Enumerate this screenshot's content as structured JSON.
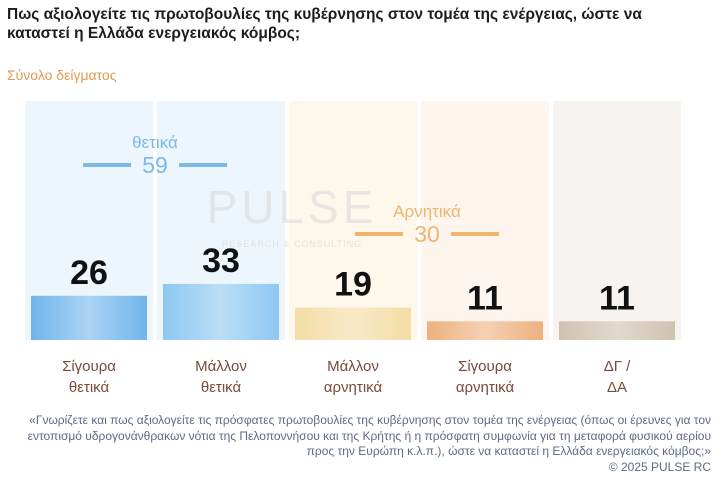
{
  "title": "Πως αξιολογείτε τις πρωτοβουλίες της κυβέρνησης στον τομέα της ενέργειας, ώστε να καταστεί η Ελλάδα ενεργειακός κόμβος;",
  "subtitle": "Σύνολο δείγματος",
  "watermark": {
    "main": "PULSE",
    "sub": "RESEARCH & CONSULTING"
  },
  "chart_data": {
    "type": "bar",
    "categories": [
      "Σίγουρα θετικά",
      "Μάλλον θετικά",
      "Μάλλον αρνητικά",
      "Σίγουρα αρνητικά",
      "ΔΓ / ΔΑ"
    ],
    "category_lines": [
      [
        "Σίγουρα",
        "θετικά"
      ],
      [
        "Μάλλον",
        "θετικά"
      ],
      [
        "Μάλλον",
        "αρνητικά"
      ],
      [
        "Σίγουρα",
        "αρνητικά"
      ],
      [
        "ΔΓ /",
        "ΔΑ"
      ]
    ],
    "values": [
      26,
      33,
      19,
      11,
      11
    ],
    "colors": [
      "#5aa9e8",
      "#7cc0f0",
      "#f2d89a",
      "#eaa56c",
      "#c9b9a4"
    ],
    "column_bg": [
      "#eef6fd",
      "#eef6fd",
      "#fdf7ec",
      "#fdf5ee",
      "#f6f3f0"
    ],
    "groups": [
      {
        "label": "θετικά",
        "value": "59",
        "color": "#7fb8e8"
      },
      {
        "label": "Αρνητικά",
        "value": "30",
        "color": "#f0b56e"
      }
    ],
    "ylim": [
      0,
      100
    ]
  },
  "footnote": "«Γνωρίζετε και πως αξιολογείτε τις πρόσφατες πρωτοβουλίες της κυβέρνησης στον τομέα της ενέργειας (όπως οι έρευνες για τον εντοπισμό υδρογονάνθρακων νότια της Πελοποννήσου και της Κρήτης ή η πρόσφατη συμφωνία για τη μεταφορά φυσικού αερίου προς την Ευρώπη κ.λ.π.), ώστε να καταστεί η Ελλάδα ενεργειακός κόμβος;»",
  "copyright": "© 2025 PULSE RC"
}
